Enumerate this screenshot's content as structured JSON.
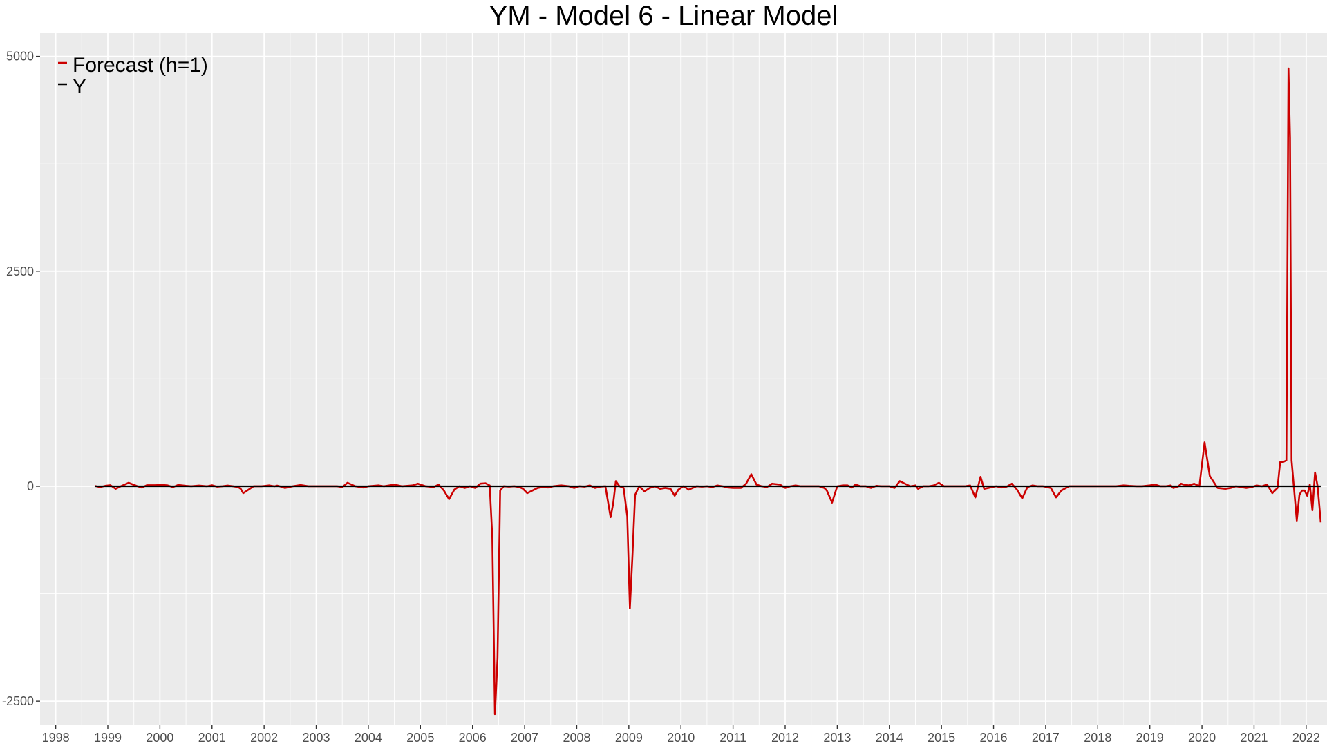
{
  "chart_data": {
    "type": "line",
    "title": "YM - Model 6 - Linear Model",
    "xlabel": "",
    "ylabel": "",
    "xlim": [
      1997.7,
      2022.4
    ],
    "ylim": [
      -2780,
      5270
    ],
    "x_ticks": [
      1998,
      1999,
      2000,
      2001,
      2002,
      2003,
      2004,
      2005,
      2006,
      2007,
      2008,
      2009,
      2010,
      2011,
      2012,
      2013,
      2014,
      2015,
      2016,
      2017,
      2018,
      2019,
      2020,
      2021,
      2022
    ],
    "x_tick_labels": [
      "1998",
      "1999",
      "2000",
      "2001",
      "2002",
      "2003",
      "2004",
      "2005",
      "2006",
      "2007",
      "2008",
      "2009",
      "2010",
      "2011",
      "2012",
      "2013",
      "2014",
      "2015",
      "2016",
      "2017",
      "2018",
      "2019",
      "2020",
      "2021",
      "2022"
    ],
    "y_ticks": [
      -2500,
      0,
      2500,
      5000
    ],
    "y_tick_labels": [
      "-2500",
      "0",
      "2500",
      "5000"
    ],
    "grid": true,
    "legend_position": "top-left",
    "colors": {
      "panel": "#ebebeb",
      "grid": "#ffffff",
      "forecast": "#cc0000",
      "y": "#000000",
      "tick_text": "#4d4d4d"
    },
    "series": [
      {
        "name": "Forecast (h=1)",
        "color": "#cc0000",
        "points": [
          [
            1998.75,
            5
          ],
          [
            1998.85,
            -10
          ],
          [
            1998.95,
            5
          ],
          [
            1999.05,
            12
          ],
          [
            1999.15,
            -30
          ],
          [
            1999.25,
            0
          ],
          [
            1999.4,
            40
          ],
          [
            1999.55,
            5
          ],
          [
            1999.65,
            -15
          ],
          [
            1999.75,
            12
          ],
          [
            1999.9,
            12
          ],
          [
            2000.05,
            15
          ],
          [
            2000.15,
            10
          ],
          [
            2000.25,
            -10
          ],
          [
            2000.35,
            15
          ],
          [
            2000.5,
            5
          ],
          [
            2000.6,
            0
          ],
          [
            2000.75,
            8
          ],
          [
            2000.9,
            0
          ],
          [
            2001.0,
            12
          ],
          [
            2001.1,
            -5
          ],
          [
            2001.2,
            0
          ],
          [
            2001.3,
            8
          ],
          [
            2001.4,
            0
          ],
          [
            2001.5,
            -10
          ],
          [
            2001.55,
            -30
          ],
          [
            2001.6,
            -80
          ],
          [
            2001.7,
            -40
          ],
          [
            2001.8,
            0
          ],
          [
            2001.95,
            0
          ],
          [
            2002.1,
            10
          ],
          [
            2002.2,
            0
          ],
          [
            2002.25,
            8
          ],
          [
            2002.3,
            0
          ],
          [
            2002.4,
            -20
          ],
          [
            2002.55,
            0
          ],
          [
            2002.7,
            15
          ],
          [
            2002.85,
            0
          ],
          [
            2003.0,
            0
          ],
          [
            2003.2,
            0
          ],
          [
            2003.4,
            0
          ],
          [
            2003.5,
            -10
          ],
          [
            2003.6,
            40
          ],
          [
            2003.75,
            0
          ],
          [
            2003.9,
            -15
          ],
          [
            2004.0,
            0
          ],
          [
            2004.2,
            10
          ],
          [
            2004.3,
            0
          ],
          [
            2004.5,
            20
          ],
          [
            2004.65,
            0
          ],
          [
            2004.85,
            10
          ],
          [
            2004.95,
            30
          ],
          [
            2005.1,
            0
          ],
          [
            2005.25,
            -10
          ],
          [
            2005.35,
            20
          ],
          [
            2005.45,
            -50
          ],
          [
            2005.55,
            -150
          ],
          [
            2005.65,
            -40
          ],
          [
            2005.75,
            0
          ],
          [
            2005.85,
            -20
          ],
          [
            2005.95,
            0
          ],
          [
            2006.05,
            -20
          ],
          [
            2006.15,
            30
          ],
          [
            2006.25,
            35
          ],
          [
            2006.33,
            10
          ],
          [
            2006.38,
            -600
          ],
          [
            2006.43,
            -2650
          ],
          [
            2006.48,
            -2000
          ],
          [
            2006.53,
            -50
          ],
          [
            2006.6,
            0
          ],
          [
            2006.7,
            -5
          ],
          [
            2006.8,
            0
          ],
          [
            2006.9,
            -10
          ],
          [
            2006.97,
            -30
          ],
          [
            2007.05,
            -80
          ],
          [
            2007.15,
            -50
          ],
          [
            2007.25,
            -20
          ],
          [
            2007.35,
            -10
          ],
          [
            2007.45,
            -15
          ],
          [
            2007.55,
            0
          ],
          [
            2007.7,
            10
          ],
          [
            2007.85,
            0
          ],
          [
            2007.95,
            -20
          ],
          [
            2008.05,
            0
          ],
          [
            2008.15,
            -5
          ],
          [
            2008.25,
            10
          ],
          [
            2008.35,
            -20
          ],
          [
            2008.45,
            -5
          ],
          [
            2008.55,
            0
          ],
          [
            2008.6,
            -180
          ],
          [
            2008.65,
            -360
          ],
          [
            2008.7,
            -200
          ],
          [
            2008.75,
            60
          ],
          [
            2008.82,
            0
          ],
          [
            2008.9,
            -20
          ],
          [
            2008.97,
            -350
          ],
          [
            2009.02,
            -1420
          ],
          [
            2009.07,
            -800
          ],
          [
            2009.12,
            -100
          ],
          [
            2009.2,
            0
          ],
          [
            2009.3,
            -60
          ],
          [
            2009.4,
            -20
          ],
          [
            2009.5,
            0
          ],
          [
            2009.6,
            -30
          ],
          [
            2009.7,
            -20
          ],
          [
            2009.8,
            -30
          ],
          [
            2009.88,
            -110
          ],
          [
            2009.95,
            -40
          ],
          [
            2010.05,
            0
          ],
          [
            2010.15,
            -40
          ],
          [
            2010.3,
            0
          ],
          [
            2010.4,
            -5
          ],
          [
            2010.5,
            0
          ],
          [
            2010.6,
            -10
          ],
          [
            2010.7,
            10
          ],
          [
            2010.8,
            0
          ],
          [
            2010.9,
            -15
          ],
          [
            2011.0,
            -20
          ],
          [
            2011.15,
            -20
          ],
          [
            2011.25,
            30
          ],
          [
            2011.35,
            140
          ],
          [
            2011.45,
            20
          ],
          [
            2011.55,
            0
          ],
          [
            2011.65,
            -10
          ],
          [
            2011.75,
            30
          ],
          [
            2011.9,
            20
          ],
          [
            2012.0,
            -20
          ],
          [
            2012.1,
            0
          ],
          [
            2012.2,
            10
          ],
          [
            2012.3,
            0
          ],
          [
            2012.4,
            0
          ],
          [
            2012.5,
            0
          ],
          [
            2012.65,
            0
          ],
          [
            2012.75,
            -20
          ],
          [
            2012.8,
            -50
          ],
          [
            2012.9,
            -190
          ],
          [
            2013.0,
            0
          ],
          [
            2013.1,
            10
          ],
          [
            2013.2,
            10
          ],
          [
            2013.28,
            -15
          ],
          [
            2013.35,
            20
          ],
          [
            2013.45,
            0
          ],
          [
            2013.55,
            0
          ],
          [
            2013.65,
            -20
          ],
          [
            2013.75,
            5
          ],
          [
            2013.85,
            0
          ],
          [
            2014.0,
            0
          ],
          [
            2014.1,
            -20
          ],
          [
            2014.2,
            60
          ],
          [
            2014.3,
            30
          ],
          [
            2014.4,
            0
          ],
          [
            2014.5,
            10
          ],
          [
            2014.55,
            -30
          ],
          [
            2014.65,
            0
          ],
          [
            2014.75,
            0
          ],
          [
            2014.85,
            10
          ],
          [
            2014.95,
            40
          ],
          [
            2015.05,
            0
          ],
          [
            2015.2,
            0
          ],
          [
            2015.3,
            0
          ],
          [
            2015.45,
            0
          ],
          [
            2015.55,
            10
          ],
          [
            2015.65,
            -130
          ],
          [
            2015.75,
            110
          ],
          [
            2015.82,
            -30
          ],
          [
            2015.9,
            -20
          ],
          [
            2015.97,
            -10
          ],
          [
            2016.05,
            0
          ],
          [
            2016.15,
            -15
          ],
          [
            2016.25,
            -5
          ],
          [
            2016.35,
            30
          ],
          [
            2016.45,
            -40
          ],
          [
            2016.55,
            -140
          ],
          [
            2016.65,
            -10
          ],
          [
            2016.75,
            10
          ],
          [
            2016.85,
            0
          ],
          [
            2016.95,
            0
          ],
          [
            2017.1,
            -20
          ],
          [
            2017.2,
            -130
          ],
          [
            2017.3,
            -50
          ],
          [
            2017.45,
            0
          ],
          [
            2017.6,
            0
          ],
          [
            2017.75,
            0
          ],
          [
            2017.9,
            0
          ],
          [
            2018.05,
            0
          ],
          [
            2018.2,
            0
          ],
          [
            2018.35,
            0
          ],
          [
            2018.5,
            10
          ],
          [
            2018.6,
            5
          ],
          [
            2018.75,
            0
          ],
          [
            2018.85,
            0
          ],
          [
            2019.0,
            10
          ],
          [
            2019.1,
            20
          ],
          [
            2019.2,
            0
          ],
          [
            2019.3,
            0
          ],
          [
            2019.4,
            10
          ],
          [
            2019.45,
            -20
          ],
          [
            2019.55,
            0
          ],
          [
            2019.6,
            30
          ],
          [
            2019.65,
            20
          ],
          [
            2019.75,
            10
          ],
          [
            2019.85,
            30
          ],
          [
            2019.95,
            0
          ],
          [
            2020.05,
            510
          ],
          [
            2020.15,
            120
          ],
          [
            2020.3,
            -20
          ],
          [
            2020.45,
            -30
          ],
          [
            2020.55,
            -20
          ],
          [
            2020.65,
            0
          ],
          [
            2020.75,
            -10
          ],
          [
            2020.85,
            -20
          ],
          [
            2020.95,
            -10
          ],
          [
            2021.05,
            10
          ],
          [
            2021.15,
            0
          ],
          [
            2021.25,
            20
          ],
          [
            2021.35,
            -80
          ],
          [
            2021.45,
            -20
          ],
          [
            2021.5,
            280
          ],
          [
            2021.55,
            280
          ],
          [
            2021.62,
            300
          ],
          [
            2021.66,
            4860
          ],
          [
            2021.69,
            4050
          ],
          [
            2021.72,
            300
          ],
          [
            2021.77,
            -50
          ],
          [
            2021.82,
            -400
          ],
          [
            2021.87,
            -100
          ],
          [
            2021.92,
            -50
          ],
          [
            2021.97,
            -50
          ],
          [
            2022.02,
            -110
          ],
          [
            2022.07,
            20
          ],
          [
            2022.12,
            -280
          ],
          [
            2022.17,
            160
          ],
          [
            2022.22,
            0
          ],
          [
            2022.28,
            -420
          ]
        ]
      },
      {
        "name": "Y",
        "color": "#000000",
        "points": [
          [
            1998.75,
            0
          ],
          [
            2022.28,
            0
          ]
        ]
      }
    ]
  }
}
